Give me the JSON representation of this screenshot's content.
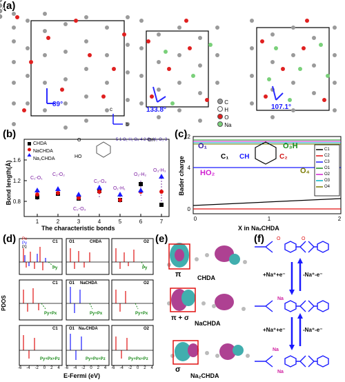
{
  "panels": {
    "a": "(a)",
    "b": "(b)",
    "c": "(c)",
    "d": "(d)",
    "e": "(e)",
    "f": "(f)"
  },
  "panel_a": {
    "angles": [
      "89°",
      "133.8°",
      "107.1°"
    ],
    "legend": [
      "C",
      "H",
      "O",
      "Na"
    ],
    "axes": [
      "c",
      "b"
    ]
  },
  "panel_b": {
    "ylabel": "Bond length(Å)",
    "xlabel": "The characteristic bonds",
    "legend": [
      "CHDA",
      "NaCHDA",
      "Na₂CHDA"
    ],
    "bond_labels": [
      "C₁-O₁",
      "C₁-O₂",
      "C₂-O₃",
      "C₂-O₄",
      "O₁-H₁",
      "O₂-H₂",
      "O₃-H₃"
    ],
    "mol_labels": {
      "oh": "OH",
      "o": "O",
      "ho": "HO",
      "oh2": "OH",
      "nums": "5 1 O₁ H₁ O₄ 4 2 O₂ H₂ O₃ 3"
    }
  },
  "panel_c": {
    "ylabel": "Bader charge",
    "xlabel": "X in NaₓCHDA",
    "mol": {
      "o1": "O₁",
      "c1": "C₁",
      "ch": "CH",
      "c2": "C₂",
      "o3h": "O₃H",
      "ho2": "HO₂",
      "o4": "O₄"
    },
    "legend": [
      "C1",
      "C2",
      "C3",
      "O1",
      "O2",
      "O3",
      "O4"
    ]
  },
  "panel_d": {
    "ylabel": "PDOS",
    "xlabel": "E-Fermi (eV)",
    "rows": [
      {
        "titles": [
          "C1",
          "O1",
          "O2"
        ],
        "sample": "CHDA",
        "notes": [
          "Py",
          "",
          "Py"
        ]
      },
      {
        "titles": [
          "C1",
          "O1",
          "O2"
        ],
        "sample": "NaCHDA",
        "notes": [
          "Py+Px",
          "Py+Px",
          "Py+Px"
        ]
      },
      {
        "titles": [
          "C1",
          "O1",
          "O2"
        ],
        "sample": "Na₂CHDA",
        "notes": [
          "Py+Px+Pz",
          "Py+Px+Pz",
          "Py+Px+Pz"
        ]
      }
    ],
    "legend": [
      "Px",
      "Py",
      "Pz"
    ],
    "xticks": [
      "-6",
      "-4",
      "-2",
      "0",
      "2",
      "4",
      "-6",
      "-4",
      "-2",
      "0",
      "2",
      "4",
      "-6",
      "-4",
      "-2",
      "0",
      "2",
      "4"
    ]
  },
  "panel_e": {
    "labels": [
      "π",
      "CHDA",
      "π + σ",
      "NaCHDA",
      "σ",
      "Na₂CHDA"
    ]
  },
  "panel_f": {
    "arrows": [
      "+Na⁺+e⁻",
      "-Na⁺-e⁻",
      "+Na⁺+e⁻",
      "-Na⁺-e⁻"
    ],
    "na": [
      "Na",
      "Na",
      "Na"
    ]
  }
}
